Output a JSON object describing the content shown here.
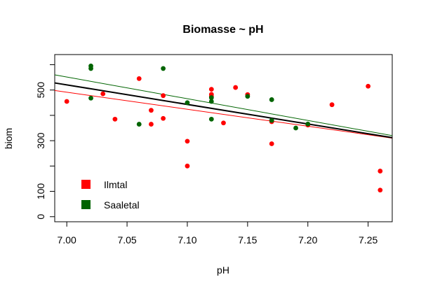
{
  "chart_data": {
    "type": "scatter",
    "title": "Biomasse ~ pH",
    "xlabel": "pH",
    "ylabel": "biom",
    "xlim": [
      6.99,
      7.27
    ],
    "ylim": [
      -20,
      640
    ],
    "x_ticks": [
      "7.00",
      "7.05",
      "7.10",
      "7.15",
      "7.20",
      "7.25"
    ],
    "y_ticks": [
      "0",
      "100",
      "300",
      "500"
    ],
    "y_minor_ticks": [
      200,
      400,
      600
    ],
    "legend_position": "bottom-left",
    "series": [
      {
        "name": "Ilmtal",
        "color": "#ff0000",
        "points": [
          [
            7.0,
            455
          ],
          [
            7.03,
            485
          ],
          [
            7.04,
            385
          ],
          [
            7.06,
            545
          ],
          [
            7.07,
            365
          ],
          [
            7.07,
            420
          ],
          [
            7.08,
            478
          ],
          [
            7.08,
            388
          ],
          [
            7.1,
            298
          ],
          [
            7.1,
            200
          ],
          [
            7.12,
            503
          ],
          [
            7.12,
            483
          ],
          [
            7.12,
            475
          ],
          [
            7.13,
            370
          ],
          [
            7.14,
            510
          ],
          [
            7.15,
            482
          ],
          [
            7.17,
            288
          ],
          [
            7.17,
            375
          ],
          [
            7.2,
            362
          ],
          [
            7.22,
            442
          ],
          [
            7.25,
            515
          ],
          [
            7.26,
            180
          ],
          [
            7.26,
            105
          ]
        ],
        "fit": [
          [
            6.99,
            498
          ],
          [
            7.27,
            310
          ]
        ]
      },
      {
        "name": "Saaletal",
        "color": "#006400",
        "points": [
          [
            7.02,
            595
          ],
          [
            7.02,
            585
          ],
          [
            7.02,
            468
          ],
          [
            7.06,
            365
          ],
          [
            7.08,
            585
          ],
          [
            7.1,
            450
          ],
          [
            7.12,
            470
          ],
          [
            7.12,
            455
          ],
          [
            7.12,
            385
          ],
          [
            7.15,
            475
          ],
          [
            7.17,
            462
          ],
          [
            7.17,
            380
          ],
          [
            7.19,
            350
          ],
          [
            7.2,
            366
          ]
        ],
        "fit": [
          [
            6.99,
            560
          ],
          [
            7.27,
            320
          ]
        ]
      }
    ],
    "overall_fit": {
      "color": "#000000",
      "line": [
        [
          6.99,
          528
        ],
        [
          7.27,
          312
        ]
      ]
    }
  }
}
